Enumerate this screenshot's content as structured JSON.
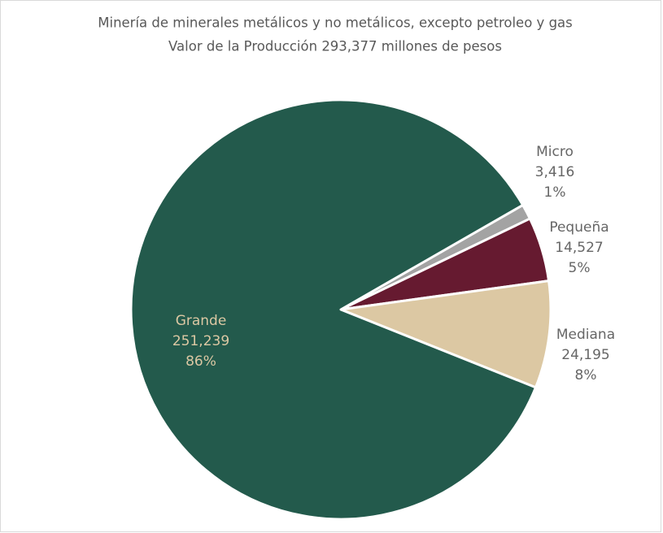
{
  "chart_data": {
    "type": "pie",
    "title": "Minería de minerales metálicos y no metálicos, excepto petroleo y gas",
    "subtitle": "Valor de la Producción 293,377 millones de pesos",
    "categories": [
      "Micro",
      "Pequeña",
      "Mediana",
      "Grande"
    ],
    "values": [
      3416,
      14527,
      24195,
      251239
    ],
    "value_labels": [
      "3,416",
      "14,527",
      "24,195",
      "251,239"
    ],
    "percentages": [
      1,
      5,
      8,
      86
    ],
    "percentage_labels": [
      "1%",
      "5%",
      "8%",
      "86%"
    ],
    "colors": [
      "#a3a3a3",
      "#661a30",
      "#dcc8a3",
      "#235a4c"
    ]
  }
}
